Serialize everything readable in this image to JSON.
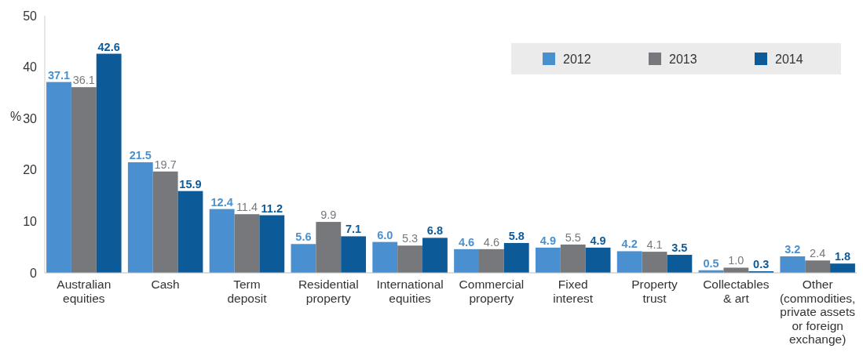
{
  "chart_data": {
    "type": "bar",
    "ylabel": "%",
    "categories": [
      "Australian\nequities",
      "Cash",
      "Term\ndeposit",
      "Residential\nproperty",
      "International\nequities",
      "Commercial\nproperty",
      "Fixed\ninterest",
      "Property\ntrust",
      "Collectables\n& art",
      "Other\n(commodities,\nprivate assets\nor foreign\nexchange)"
    ],
    "series": [
      {
        "name": "2012",
        "color": "#4a90d0",
        "values": [
          37.1,
          21.5,
          12.4,
          5.6,
          6.0,
          4.6,
          4.9,
          4.2,
          0.5,
          3.2
        ],
        "value_labels": [
          "37.1",
          "21.5",
          "12.4",
          "5.6",
          "6.0",
          "4.6",
          "4.9",
          "4.2",
          "0.5",
          "3.2"
        ]
      },
      {
        "name": "2013",
        "color": "#77787b",
        "values": [
          36.1,
          19.7,
          11.4,
          9.9,
          5.3,
          4.6,
          5.5,
          4.1,
          1.0,
          2.4
        ],
        "value_labels": [
          "36.1",
          "19.7",
          "11.4",
          "9.9",
          "5.3",
          "4.6",
          "5.5",
          "4.1",
          "1.0",
          "2.4"
        ]
      },
      {
        "name": "2014",
        "color": "#0d5a99",
        "values": [
          42.6,
          15.9,
          11.2,
          7.1,
          6.8,
          5.8,
          4.9,
          3.5,
          0.3,
          1.8
        ],
        "value_labels": [
          "42.6",
          "15.9",
          "11.2",
          "7.1",
          "6.8",
          "5.8",
          "4.9",
          "3.5",
          "0.3",
          "1.8"
        ]
      }
    ],
    "ylim": [
      0,
      50
    ],
    "yticks": [
      0,
      10,
      20,
      30,
      40,
      50
    ],
    "legend": "top right"
  }
}
